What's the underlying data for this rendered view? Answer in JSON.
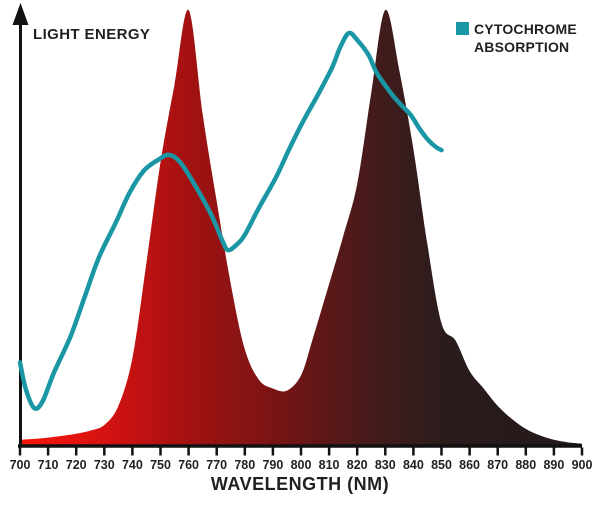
{
  "labels": {
    "y_axis": "LIGHT ENERGY",
    "x_axis": "WAVELENGTH (NM)"
  },
  "legend": {
    "line1": "CYTOCHROME",
    "line2": "ABSORPTION",
    "swatch_color": "#1b96a4"
  },
  "colors": {
    "axis": "#111111",
    "text": "#231f20",
    "absorption_line": "#1b96a4"
  },
  "chart_data": {
    "type": "area",
    "title": "",
    "xlabel": "WAVELENGTH (NM)",
    "ylabel": "LIGHT ENERGY",
    "x_range": [
      700,
      900
    ],
    "y_range": [
      0,
      1
    ],
    "grid": false,
    "legend_position": "top-right",
    "x_ticks": [
      700,
      710,
      720,
      730,
      740,
      750,
      760,
      770,
      780,
      790,
      800,
      810,
      820,
      830,
      840,
      850,
      860,
      870,
      880,
      890,
      900
    ],
    "series": [
      {
        "name": "Light energy",
        "type": "area",
        "peaks_nm": [
          760,
          830
        ],
        "gradient_stops": [
          {
            "offset": 0.0,
            "color": "#f41405"
          },
          {
            "offset": 0.1,
            "color": "#e31310"
          },
          {
            "offset": 0.2,
            "color": "#c51212"
          },
          {
            "offset": 0.3,
            "color": "#a31111"
          },
          {
            "offset": 0.4,
            "color": "#881414"
          },
          {
            "offset": 0.5,
            "color": "#6b1515"
          },
          {
            "offset": 0.62,
            "color": "#461b1b"
          },
          {
            "offset": 0.75,
            "color": "#2b1c1c"
          },
          {
            "offset": 1.0,
            "color": "#241919"
          }
        ],
        "points": [
          [
            700,
            0.012
          ],
          [
            705,
            0.014
          ],
          [
            710,
            0.017
          ],
          [
            715,
            0.021
          ],
          [
            720,
            0.026
          ],
          [
            725,
            0.033
          ],
          [
            730,
            0.046
          ],
          [
            735,
            0.09
          ],
          [
            740,
            0.2
          ],
          [
            745,
            0.42
          ],
          [
            750,
            0.65
          ],
          [
            755,
            0.83
          ],
          [
            760,
            1.0
          ],
          [
            765,
            0.76
          ],
          [
            770,
            0.56
          ],
          [
            775,
            0.37
          ],
          [
            780,
            0.22
          ],
          [
            785,
            0.15
          ],
          [
            790,
            0.13
          ],
          [
            795,
            0.125
          ],
          [
            800,
            0.16
          ],
          [
            804,
            0.24
          ],
          [
            810,
            0.37
          ],
          [
            815,
            0.48
          ],
          [
            820,
            0.6
          ],
          [
            825,
            0.81
          ],
          [
            830,
            1.0
          ],
          [
            835,
            0.86
          ],
          [
            840,
            0.68
          ],
          [
            845,
            0.46
          ],
          [
            850,
            0.28
          ],
          [
            855,
            0.24
          ],
          [
            860,
            0.17
          ],
          [
            865,
            0.13
          ],
          [
            870,
            0.09
          ],
          [
            875,
            0.06
          ],
          [
            880,
            0.037
          ],
          [
            885,
            0.022
          ],
          [
            890,
            0.012
          ],
          [
            895,
            0.006
          ],
          [
            900,
            0.003
          ]
        ]
      },
      {
        "name": "Cytochrome absorption",
        "type": "line",
        "color": "#1b96a4",
        "stroke_width": 4.5,
        "peaks_nm": [
          753,
          817
        ],
        "points": [
          [
            700,
            0.19
          ],
          [
            702,
            0.13
          ],
          [
            705,
            0.085
          ],
          [
            708,
            0.1
          ],
          [
            712,
            0.165
          ],
          [
            718,
            0.25
          ],
          [
            723,
            0.34
          ],
          [
            728,
            0.43
          ],
          [
            734,
            0.51
          ],
          [
            739,
            0.58
          ],
          [
            744,
            0.63
          ],
          [
            749,
            0.655
          ],
          [
            753,
            0.667
          ],
          [
            757,
            0.65
          ],
          [
            762,
            0.6
          ],
          [
            768,
            0.53
          ],
          [
            772,
            0.47
          ],
          [
            774,
            0.448
          ],
          [
            777,
            0.46
          ],
          [
            780,
            0.483
          ],
          [
            785,
            0.545
          ],
          [
            791,
            0.614
          ],
          [
            796,
            0.683
          ],
          [
            801,
            0.747
          ],
          [
            806,
            0.805
          ],
          [
            811,
            0.867
          ],
          [
            814,
            0.915
          ],
          [
            817,
            0.947
          ],
          [
            820,
            0.931
          ],
          [
            824,
            0.897
          ],
          [
            827,
            0.855
          ],
          [
            832,
            0.809
          ],
          [
            835,
            0.786
          ],
          [
            839,
            0.759
          ],
          [
            842,
            0.729
          ],
          [
            845,
            0.703
          ],
          [
            848,
            0.685
          ],
          [
            850,
            0.678
          ]
        ]
      }
    ]
  }
}
